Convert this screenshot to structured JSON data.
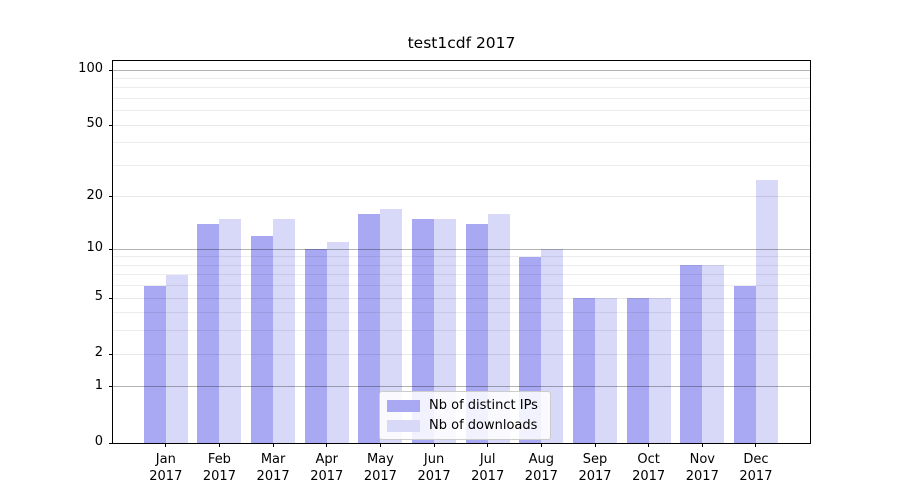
{
  "chart_data": {
    "type": "bar",
    "title": "test1cdf 2017",
    "year": "2017",
    "categories": [
      "Jan",
      "Feb",
      "Mar",
      "Apr",
      "May",
      "Jun",
      "Jul",
      "Aug",
      "Sep",
      "Oct",
      "Nov",
      "Dec"
    ],
    "series": [
      {
        "name": "Nb of distinct IPs",
        "color": "#a8a8f3",
        "values": [
          6,
          14,
          12,
          10,
          16,
          15,
          14,
          9,
          5,
          5,
          8,
          6
        ]
      },
      {
        "name": "Nb of downloads",
        "color": "#d8d8f8",
        "values": [
          7,
          15,
          15,
          11,
          17,
          15,
          16,
          10,
          5,
          5,
          8,
          25
        ]
      }
    ],
    "yscale": "log1p",
    "ylim": [
      0,
      112
    ],
    "yticks": [
      0,
      1,
      2,
      5,
      10,
      20,
      50,
      100
    ],
    "decade_ticks": [
      1,
      10,
      100
    ],
    "minor_gridlines": [
      3,
      4,
      6,
      7,
      8,
      9,
      30,
      40,
      60,
      70,
      80,
      90
    ],
    "grid": true,
    "grid_above_bars": true,
    "legend_position": "lower center",
    "xlabel": "",
    "ylabel": ""
  },
  "colors": {
    "background": "#ffffff",
    "spine": "#000000",
    "grid_decade": "#b3b3b3",
    "grid_light": "#ebebeb",
    "text": "#000000",
    "legend_border": "#cccccc"
  }
}
